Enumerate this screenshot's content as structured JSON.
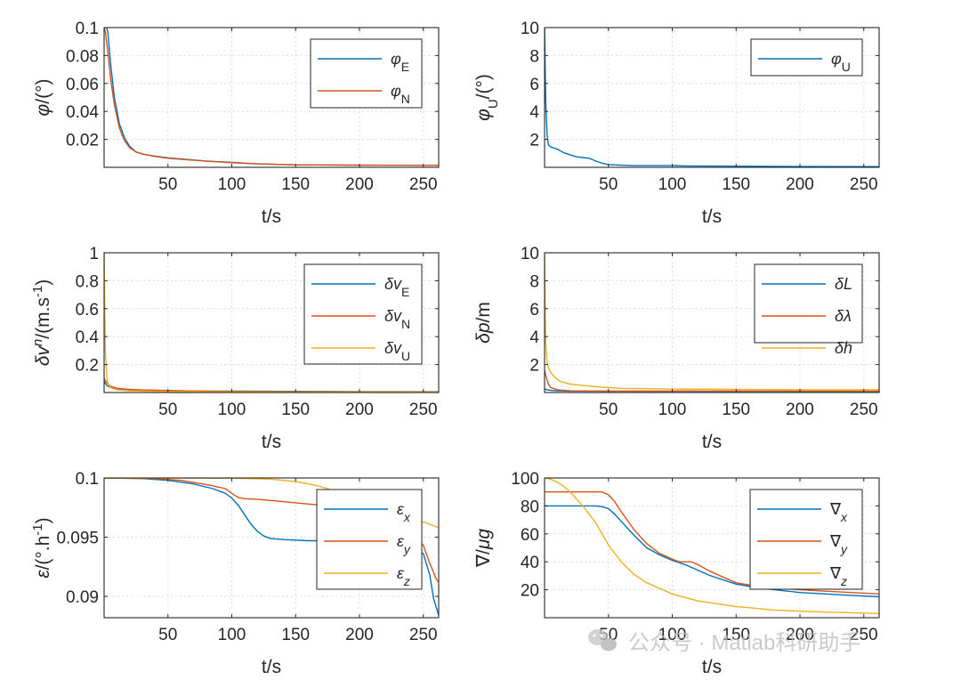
{
  "colors": {
    "blue": "#0072BD",
    "orange": "#D95319",
    "yellow": "#EDB120",
    "axis": "#262626"
  },
  "watermark": {
    "text": "公众号 · Matlab科研助手",
    "icon": "wechat-icon"
  },
  "chart_data": [
    {
      "type": "line",
      "id": "phi-en",
      "title": "",
      "xlabel": "t/s",
      "ylabel": "φ/(°)",
      "xlim": [
        0,
        262
      ],
      "ylim": [
        0,
        0.1
      ],
      "xticks": [
        50,
        100,
        150,
        200,
        250
      ],
      "yticks": [
        0.02,
        0.04,
        0.06,
        0.08,
        0.1
      ],
      "ytick_labels": [
        "0.02",
        "0.04",
        "0.06",
        "0.08",
        "0.1"
      ],
      "grid": true,
      "legend_position": "top-right",
      "series": [
        {
          "name": "φE",
          "label": "φ",
          "sub": "E",
          "color": "#0072BD",
          "x": [
            0,
            2,
            3,
            5,
            8,
            12,
            16,
            20,
            25,
            30,
            40,
            50,
            60,
            80,
            100,
            120,
            150,
            200,
            262
          ],
          "y": [
            0.1,
            0.1,
            0.096,
            0.075,
            0.05,
            0.031,
            0.021,
            0.015,
            0.011,
            0.0095,
            0.008,
            0.0068,
            0.006,
            0.0045,
            0.0035,
            0.0025,
            0.0018,
            0.0015,
            0.0014
          ]
        },
        {
          "name": "φN",
          "label": "φ",
          "sub": "N",
          "color": "#D95319",
          "x": [
            0,
            1,
            3,
            5,
            8,
            12,
            16,
            20,
            25,
            30,
            40,
            50,
            60,
            80,
            100,
            120,
            150,
            200,
            262
          ],
          "y": [
            0.1,
            0.097,
            0.082,
            0.064,
            0.045,
            0.028,
            0.019,
            0.014,
            0.011,
            0.0095,
            0.0078,
            0.0065,
            0.0058,
            0.0044,
            0.0033,
            0.0025,
            0.0018,
            0.0015,
            0.0014
          ]
        }
      ]
    },
    {
      "type": "line",
      "id": "phi-u",
      "title": "",
      "xlabel": "t/s",
      "ylabel": "φU/(°)",
      "xlim": [
        0,
        262
      ],
      "ylim": [
        0,
        10
      ],
      "xticks": [
        50,
        100,
        150,
        200,
        250
      ],
      "yticks": [
        2,
        4,
        6,
        8,
        10
      ],
      "ytick_labels": [
        "2",
        "4",
        "6",
        "8",
        "10"
      ],
      "grid": true,
      "legend_position": "top-right",
      "series": [
        {
          "name": "φU",
          "label": "φ",
          "sub": "U",
          "color": "#0072BD",
          "x": [
            0,
            0.5,
            1,
            2,
            3,
            5,
            10,
            15,
            20,
            25,
            30,
            35,
            40,
            45,
            50,
            60,
            70,
            80,
            100,
            110,
            150,
            200,
            262
          ],
          "y": [
            10,
            7,
            4.5,
            2.3,
            1.6,
            1.45,
            1.3,
            1.05,
            0.9,
            0.75,
            0.7,
            0.65,
            0.45,
            0.3,
            0.2,
            0.15,
            0.12,
            0.12,
            0.12,
            0.1,
            0.08,
            0.06,
            0.05
          ]
        }
      ]
    },
    {
      "type": "line",
      "id": "dv",
      "title": "",
      "xlabel": "t/s",
      "ylabel": "δvn/(m.s-1)",
      "xlim": [
        0,
        262
      ],
      "ylim": [
        0,
        1
      ],
      "xticks": [
        50,
        100,
        150,
        200,
        250
      ],
      "yticks": [
        0.2,
        0.4,
        0.6,
        0.8,
        1
      ],
      "ytick_labels": [
        "0.2",
        "0.4",
        "0.6",
        "0.8",
        "1"
      ],
      "grid": true,
      "legend_position": "top-right",
      "series": [
        {
          "name": "δvE",
          "label": "δv",
          "sub": "E",
          "color": "#0072BD",
          "x": [
            0,
            2,
            5,
            10,
            20,
            30,
            40,
            60,
            80,
            100,
            110,
            150,
            200,
            262
          ],
          "y": [
            0.08,
            0.05,
            0.035,
            0.025,
            0.02,
            0.018,
            0.015,
            0.012,
            0.01,
            0.01,
            0.01,
            0.008,
            0.006,
            0.005
          ]
        },
        {
          "name": "δvN",
          "label": "δv",
          "sub": "N",
          "color": "#D95319",
          "x": [
            0,
            2,
            5,
            10,
            20,
            30,
            40,
            60,
            80,
            100,
            150,
            200,
            262
          ],
          "y": [
            0.1,
            0.07,
            0.045,
            0.03,
            0.022,
            0.018,
            0.016,
            0.012,
            0.01,
            0.008,
            0.006,
            0.005,
            0.004
          ]
        },
        {
          "name": "δvU",
          "label": "δv",
          "sub": "U",
          "color": "#EDB120",
          "x": [
            0,
            0.5,
            1,
            2,
            3,
            5,
            10,
            20,
            40,
            80,
            150,
            262
          ],
          "y": [
            1,
            0.6,
            0.3,
            0.12,
            0.06,
            0.035,
            0.02,
            0.012,
            0.008,
            0.005,
            0.003,
            0.002
          ]
        }
      ]
    },
    {
      "type": "line",
      "id": "dp",
      "title": "",
      "xlabel": "t/s",
      "ylabel": "δp/m",
      "xlim": [
        0,
        262
      ],
      "ylim": [
        0,
        10
      ],
      "xticks": [
        50,
        100,
        150,
        200,
        250
      ],
      "yticks": [
        2,
        4,
        6,
        8,
        10
      ],
      "ytick_labels": [
        "2",
        "4",
        "6",
        "8",
        "10"
      ],
      "grid": true,
      "legend_position": "top-right",
      "series": [
        {
          "name": "δL",
          "label": "δL",
          "sub": "",
          "color": "#0072BD",
          "x": [
            0,
            2,
            5,
            10,
            20,
            262
          ],
          "y": [
            0.25,
            0.2,
            0.15,
            0.12,
            0.1,
            0.08
          ]
        },
        {
          "name": "δλ",
          "label": "δλ",
          "sub": "",
          "color": "#D95319",
          "x": [
            0,
            1,
            3,
            5,
            10,
            15,
            20,
            40,
            60,
            100,
            262
          ],
          "y": [
            1.6,
            1.2,
            0.6,
            0.35,
            0.2,
            0.15,
            0.12,
            0.1,
            0.1,
            0.1,
            0.1
          ]
        },
        {
          "name": "δh",
          "label": "δh",
          "sub": "",
          "color": "#EDB120",
          "x": [
            0,
            0.5,
            1,
            2,
            3,
            5,
            8,
            12,
            20,
            30,
            40,
            50,
            60,
            80,
            100,
            150,
            200,
            262
          ],
          "y": [
            10,
            6,
            3.5,
            2.2,
            1.8,
            1.4,
            1.1,
            0.8,
            0.6,
            0.5,
            0.42,
            0.35,
            0.3,
            0.28,
            0.25,
            0.22,
            0.2,
            0.2
          ]
        }
      ]
    },
    {
      "type": "line",
      "id": "eps",
      "title": "",
      "xlabel": "t/s",
      "ylabel": "ε/(°.h-1)",
      "xlim": [
        0,
        262
      ],
      "ylim": [
        0.0882,
        0.1
      ],
      "xticks": [
        50,
        100,
        150,
        200,
        250
      ],
      "yticks": [
        0.09,
        0.095,
        0.1
      ],
      "ytick_labels": [
        "0.09",
        "0.095",
        "0.1"
      ],
      "grid": true,
      "legend_position": "top-right",
      "series": [
        {
          "name": "εx",
          "label": "ε",
          "sub": "x",
          "color": "#0072BD",
          "x": [
            0,
            30,
            50,
            70,
            85,
            95,
            100,
            105,
            110,
            115,
            120,
            125,
            130,
            140,
            160,
            180,
            200,
            220,
            240,
            250,
            255,
            258,
            262
          ],
          "y": [
            0.1,
            0.09995,
            0.0998,
            0.0995,
            0.0991,
            0.0987,
            0.0983,
            0.0977,
            0.0969,
            0.0961,
            0.0955,
            0.0951,
            0.0949,
            0.0948,
            0.0947,
            0.0947,
            0.0946,
            0.0945,
            0.0944,
            0.0936,
            0.0918,
            0.0898,
            0.0884
          ]
        },
        {
          "name": "εy",
          "label": "ε",
          "sub": "y",
          "color": "#D95319",
          "x": [
            0,
            40,
            60,
            80,
            95,
            100,
            105,
            110,
            120,
            140,
            160,
            180,
            200,
            220,
            240,
            250,
            255,
            260,
            262
          ],
          "y": [
            0.1,
            0.09995,
            0.0998,
            0.09945,
            0.0991,
            0.0987,
            0.09835,
            0.09825,
            0.0982,
            0.098,
            0.0978,
            0.0976,
            0.0973,
            0.0966,
            0.0955,
            0.0943,
            0.0928,
            0.0915,
            0.0912
          ]
        },
        {
          "name": "εz",
          "label": "ε",
          "sub": "z",
          "color": "#EDB120",
          "x": [
            0,
            60,
            100,
            130,
            150,
            165,
            175,
            180,
            185,
            200,
            220,
            240,
            262
          ],
          "y": [
            0.1,
            0.1,
            0.09998,
            0.0999,
            0.0997,
            0.0994,
            0.0991,
            0.0989,
            0.0988,
            0.0984,
            0.0977,
            0.0967,
            0.0958
          ]
        }
      ]
    },
    {
      "type": "line",
      "id": "nabla",
      "title": "",
      "xlabel": "t/s",
      "ylabel": "∇/μg",
      "xlim": [
        0,
        262
      ],
      "ylim": [
        0,
        100
      ],
      "xticks": [
        50,
        100,
        150,
        200,
        250
      ],
      "yticks": [
        20,
        40,
        60,
        80,
        100
      ],
      "ytick_labels": [
        "20",
        "40",
        "60",
        "80",
        "100"
      ],
      "grid": true,
      "legend_position": "top-right",
      "series": [
        {
          "name": "∇x",
          "label": "∇",
          "sub": "x",
          "color": "#0072BD",
          "x": [
            0,
            30,
            40,
            45,
            50,
            55,
            60,
            70,
            80,
            90,
            100,
            110,
            120,
            130,
            150,
            170,
            200,
            220,
            240,
            262
          ],
          "y": [
            80,
            80,
            80,
            79.5,
            78,
            74,
            69,
            59,
            50,
            45,
            41,
            38,
            34,
            30,
            24,
            21,
            18,
            17,
            16,
            15
          ]
        },
        {
          "name": "∇y",
          "label": "∇",
          "sub": "y",
          "color": "#D95319",
          "x": [
            0,
            40,
            45,
            50,
            55,
            60,
            70,
            80,
            90,
            100,
            105,
            115,
            120,
            130,
            150,
            170,
            200,
            220,
            240,
            262
          ],
          "y": [
            90,
            90,
            90,
            88,
            83,
            76,
            63,
            53,
            46,
            42,
            40,
            40,
            38,
            33,
            25,
            22,
            20,
            19,
            18,
            17
          ]
        },
        {
          "name": "∇z",
          "label": "∇",
          "sub": "z",
          "color": "#EDB120",
          "x": [
            0,
            5,
            10,
            15,
            20,
            30,
            40,
            50,
            60,
            70,
            80,
            100,
            120,
            150,
            180,
            220,
            262
          ],
          "y": [
            100,
            99,
            97,
            94,
            90,
            80,
            68,
            52,
            40,
            31,
            25,
            17,
            12,
            8,
            5.5,
            4,
            3
          ]
        }
      ]
    }
  ]
}
